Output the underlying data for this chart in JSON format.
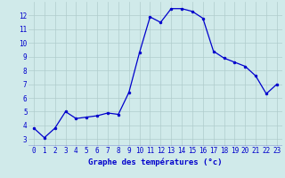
{
  "hours": [
    0,
    1,
    2,
    3,
    4,
    5,
    6,
    7,
    8,
    9,
    10,
    11,
    12,
    13,
    14,
    15,
    16,
    17,
    18,
    19,
    20,
    21,
    22,
    23
  ],
  "temps": [
    3.8,
    3.1,
    3.8,
    5.0,
    4.5,
    4.6,
    4.7,
    4.9,
    4.8,
    6.4,
    9.3,
    11.9,
    11.5,
    12.5,
    12.5,
    12.3,
    11.8,
    9.4,
    8.9,
    8.6,
    8.3,
    7.6,
    6.3,
    7.0
  ],
  "line_color": "#0000cc",
  "marker": "o",
  "marker_size": 2.0,
  "linewidth": 0.9,
  "bg_color": "#d0eaea",
  "grid_color": "#b0cccc",
  "xlabel": "Graphe des températures (°c)",
  "xlabel_color": "#0000cc",
  "xlabel_fontsize": 6.5,
  "tick_color": "#0000cc",
  "tick_fontsize": 5.5,
  "xlim": [
    -0.5,
    23.5
  ],
  "ylim": [
    2.5,
    13.0
  ],
  "yticks": [
    3,
    4,
    5,
    6,
    7,
    8,
    9,
    10,
    11,
    12
  ],
  "xticks": [
    0,
    1,
    2,
    3,
    4,
    5,
    6,
    7,
    8,
    9,
    10,
    11,
    12,
    13,
    14,
    15,
    16,
    17,
    18,
    19,
    20,
    21,
    22,
    23
  ],
  "bottom_bar_color": "#0000aa",
  "bottom_bar_height": 0.013
}
